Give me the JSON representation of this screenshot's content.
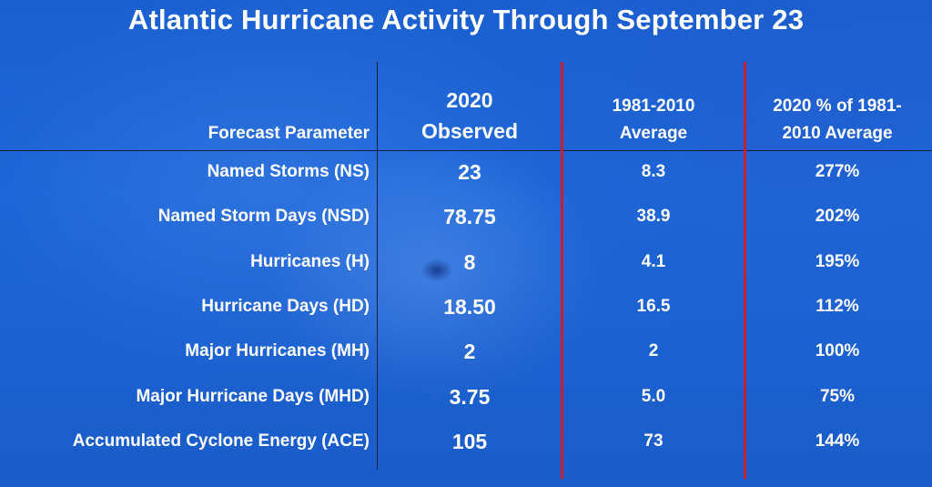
{
  "title": "Atlantic Hurricane Activity Through September 23",
  "chart_data": {
    "type": "table",
    "columns": [
      "Forecast Parameter",
      "2020 Observed",
      "1981-2010 Average",
      "2020 % of 1981-2010 Average"
    ],
    "header_lines": {
      "param": [
        "Forecast Parameter"
      ],
      "observed": [
        "2020",
        "Observed"
      ],
      "average": [
        "1981-2010",
        "Average"
      ],
      "percent": [
        "2020 % of 1981-",
        "2010 Average"
      ]
    },
    "rows": [
      {
        "parameter": "Named Storms (NS)",
        "observed": "23",
        "average": "8.3",
        "percent": "277%"
      },
      {
        "parameter": "Named Storm Days (NSD)",
        "observed": "78.75",
        "average": "38.9",
        "percent": "202%"
      },
      {
        "parameter": "Hurricanes (H)",
        "observed": "8",
        "average": "4.1",
        "percent": "195%"
      },
      {
        "parameter": "Hurricane Days (HD)",
        "observed": "18.50",
        "average": "16.5",
        "percent": "112%"
      },
      {
        "parameter": "Major Hurricanes (MH)",
        "observed": "2",
        "average": "2",
        "percent": "100%"
      },
      {
        "parameter": "Major Hurricane Days (MHD)",
        "observed": "3.75",
        "average": "5.0",
        "percent": "75%"
      },
      {
        "parameter": "Accumulated Cyclone Energy (ACE)",
        "observed": "105",
        "average": "73",
        "percent": "144%"
      }
    ]
  },
  "colors": {
    "background": "#1d66d8",
    "text": "#ffffff",
    "divider_dark": "#0b1b3f",
    "divider_red": "#c81e34"
  }
}
